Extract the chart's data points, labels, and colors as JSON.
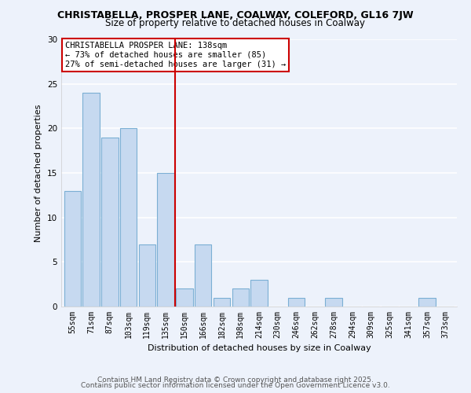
{
  "title": "CHRISTABELLA, PROSPER LANE, COALWAY, COLEFORD, GL16 7JW",
  "subtitle": "Size of property relative to detached houses in Coalway",
  "xlabel": "Distribution of detached houses by size in Coalway",
  "ylabel": "Number of detached properties",
  "bin_labels": [
    "55sqm",
    "71sqm",
    "87sqm",
    "103sqm",
    "119sqm",
    "135sqm",
    "150sqm",
    "166sqm",
    "182sqm",
    "198sqm",
    "214sqm",
    "230sqm",
    "246sqm",
    "262sqm",
    "278sqm",
    "294sqm",
    "309sqm",
    "325sqm",
    "341sqm",
    "357sqm",
    "373sqm"
  ],
  "bar_values": [
    13,
    24,
    19,
    20,
    7,
    15,
    2,
    7,
    1,
    2,
    3,
    0,
    1,
    0,
    1,
    0,
    0,
    0,
    0,
    1,
    0
  ],
  "bar_color": "#c6d9f0",
  "bar_edge_color": "#7bafd4",
  "vline_color": "#cc0000",
  "vline_bin_index": 5,
  "annotation_title": "CHRISTABELLA PROSPER LANE: 138sqm",
  "annotation_line1": "← 73% of detached houses are smaller (85)",
  "annotation_line2": "27% of semi-detached houses are larger (31) →",
  "annotation_box_edge_color": "#cc0000",
  "annotation_bg": "#ffffff",
  "ylim": [
    0,
    30
  ],
  "yticks": [
    0,
    5,
    10,
    15,
    20,
    25,
    30
  ],
  "footer1": "Contains HM Land Registry data © Crown copyright and database right 2025.",
  "footer2": "Contains public sector information licensed under the Open Government Licence v3.0.",
  "bg_color": "#edf2fb",
  "grid_color": "#ffffff",
  "title_fontsize": 9,
  "subtitle_fontsize": 8.5,
  "axis_label_fontsize": 8,
  "tick_fontsize": 7,
  "annotation_fontsize": 7.5,
  "footer_fontsize": 6.5
}
